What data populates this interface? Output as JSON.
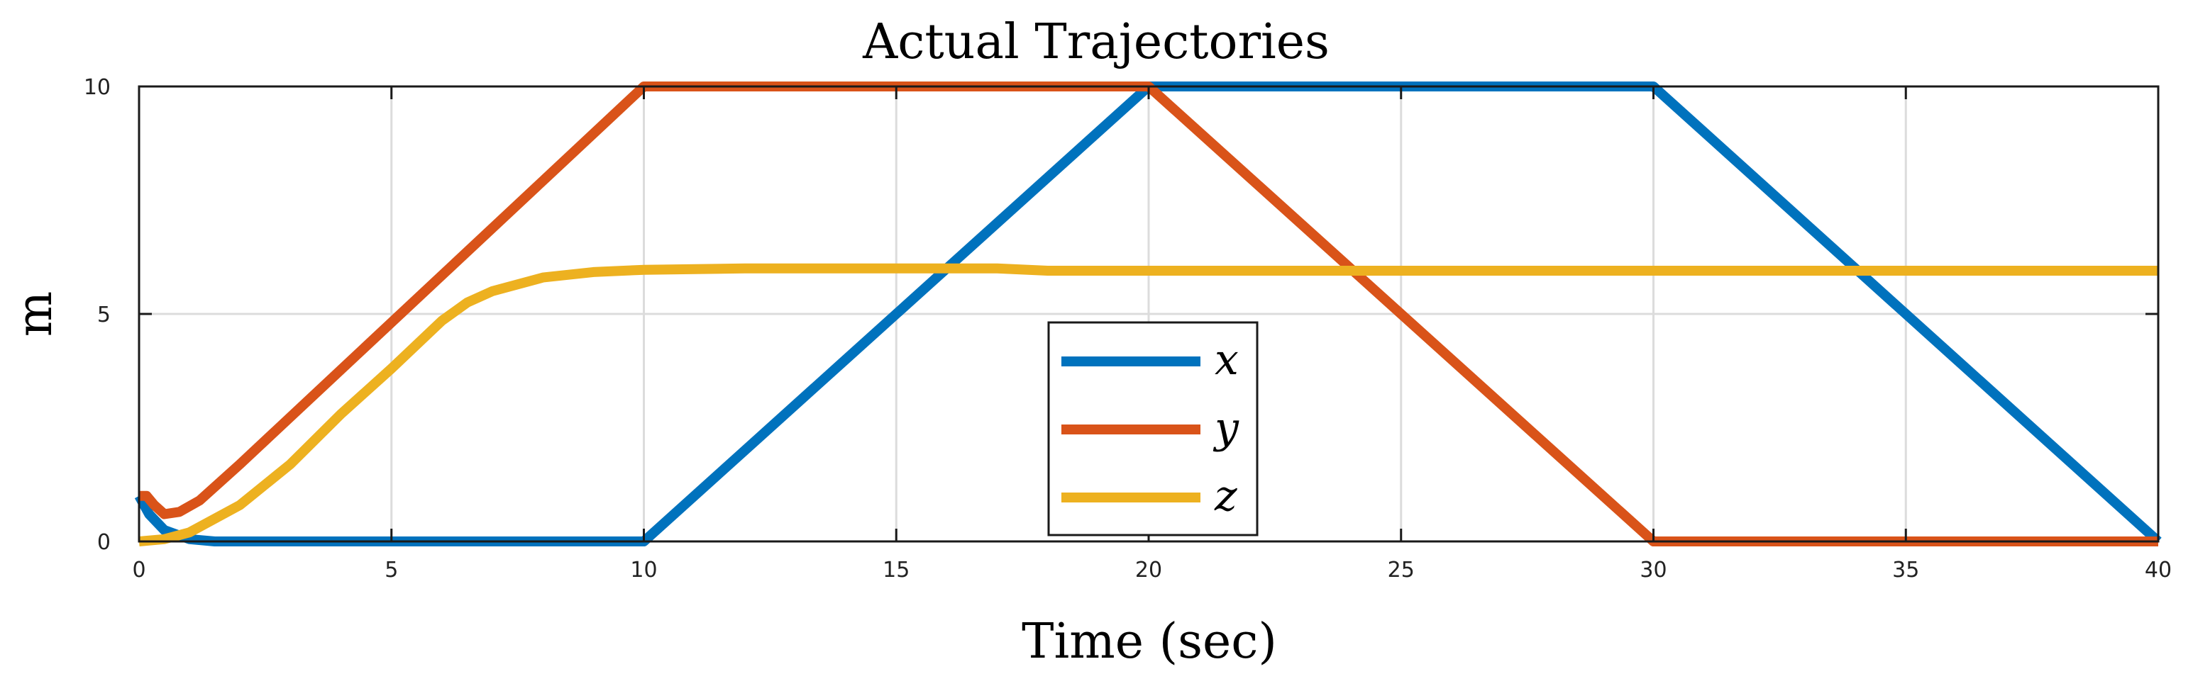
{
  "chart_data": {
    "type": "line",
    "title": "Actual Trajectories",
    "xlabel": "Time (sec)",
    "ylabel": "m",
    "xlim": [
      0,
      40
    ],
    "ylim": [
      0,
      10
    ],
    "xticks": [
      0,
      5,
      10,
      15,
      20,
      25,
      30,
      35,
      40
    ],
    "yticks": [
      0,
      5,
      10
    ],
    "grid": true,
    "legend_position": "bottom-center",
    "series": [
      {
        "name": "x",
        "color": "#0072BD",
        "x": [
          0,
          0.2,
          0.5,
          1.0,
          1.5,
          2.0,
          10,
          20,
          30,
          40
        ],
        "y": [
          1.0,
          0.6,
          0.25,
          0.05,
          0.0,
          0.0,
          0.0,
          10.0,
          10.0,
          0.0
        ]
      },
      {
        "name": "y",
        "color": "#D95319",
        "x": [
          0,
          0.15,
          0.3,
          0.5,
          0.8,
          1.2,
          2.0,
          10,
          20,
          30,
          40
        ],
        "y": [
          1.0,
          1.0,
          0.8,
          0.6,
          0.65,
          0.9,
          1.7,
          10.0,
          10.0,
          0.0,
          0.0
        ]
      },
      {
        "name": "z",
        "color": "#EDB120",
        "x": [
          0,
          0.5,
          1.0,
          2.0,
          3.0,
          4.0,
          5.0,
          6.0,
          6.5,
          7.0,
          8.0,
          9.0,
          10.0,
          12.0,
          17.0,
          18.0,
          40.0
        ],
        "y": [
          0.0,
          0.05,
          0.2,
          0.8,
          1.7,
          2.8,
          3.8,
          4.85,
          5.25,
          5.5,
          5.8,
          5.92,
          5.97,
          6.0,
          6.0,
          5.95,
          5.95
        ]
      }
    ]
  }
}
